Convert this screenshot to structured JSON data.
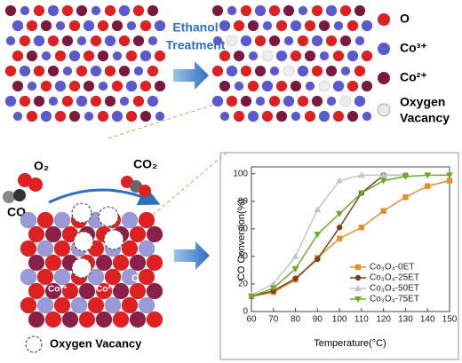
{
  "chart_data": {
    "type": "line",
    "ylabel": "CO Conversion(%)",
    "xlabel": "Temperature(°C)",
    "x": [
      60,
      70,
      80,
      90,
      100,
      110,
      120,
      130,
      140,
      150
    ],
    "series": [
      {
        "name": "Co₃O₄-0ET",
        "color": "#e0922f",
        "marker": "square",
        "values": [
          11,
          14,
          23,
          39,
          53,
          61,
          73,
          83,
          91,
          95
        ]
      },
      {
        "name": "Co₃O₄-25ET",
        "color": "#7b3f1a",
        "marker": "circle",
        "values": [
          11,
          15,
          24,
          38,
          61,
          86,
          99,
          99,
          null,
          null
        ]
      },
      {
        "name": "Co₃O₄-50ET",
        "color": "#c4c4c4",
        "marker": "triangle-up",
        "values": [
          12,
          20,
          40,
          74,
          95,
          99,
          99,
          99,
          null,
          null
        ]
      },
      {
        "name": "Co₃O₄-75ET",
        "color": "#6aab2e",
        "marker": "triangle-down",
        "values": [
          11,
          17,
          31,
          56,
          71,
          86,
          95,
          98,
          99,
          99
        ]
      }
    ],
    "xlim": [
      60,
      150
    ],
    "xticks": [
      60,
      70,
      80,
      90,
      100,
      110,
      120,
      130,
      140,
      150
    ],
    "ylim": [
      0,
      105
    ],
    "yticks": [
      0,
      20,
      40,
      60,
      80,
      100
    ],
    "legend": "lower right"
  },
  "diagram": {
    "treatment": [
      "Ethanol",
      "Treatment"
    ],
    "legend": {
      "o": "O",
      "co3": "Co³⁺",
      "co2": "Co²⁺",
      "vacancy": [
        "Oxygen",
        "Vacancy"
      ]
    },
    "reaction": {
      "o2": "O₂",
      "co": "CO",
      "co2": "CO₂",
      "site_co3": "Co³⁺",
      "site_co2": "Co²⁺",
      "site_o": "O",
      "vacancy": "Oxygen Vacancy"
    }
  }
}
